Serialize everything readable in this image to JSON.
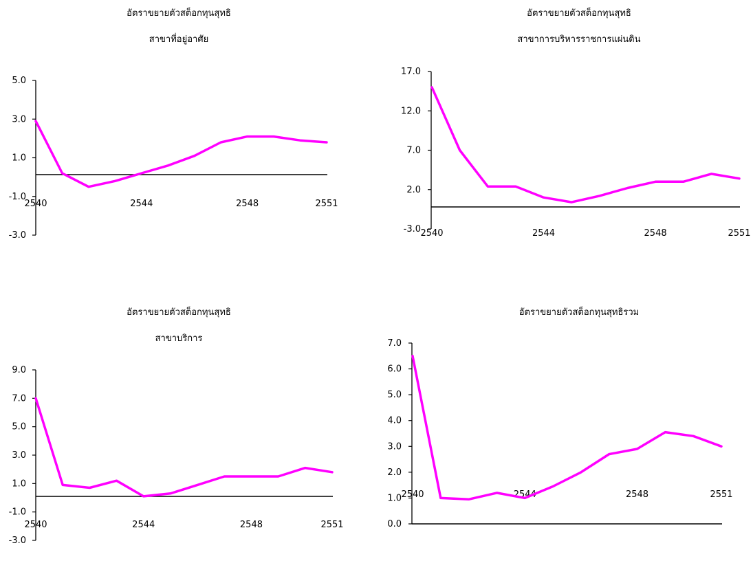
{
  "line_color": "#ff00ff",
  "axis_color": "#000000",
  "chart_data": [
    {
      "type": "line",
      "title": "อัตราขยายตัวสต็อกทุนสุทธิ",
      "subtitle": "สาขาที่อยู่อาศัย",
      "x": [
        2540,
        2541,
        2542,
        2543,
        2544,
        2545,
        2546,
        2547,
        2548,
        2549,
        2550,
        2551
      ],
      "x_tick_labels": [
        "2540",
        "2544",
        "2548",
        "2551"
      ],
      "values": [
        2.9,
        0.2,
        -0.5,
        -0.2,
        0.2,
        0.6,
        1.1,
        1.8,
        2.1,
        2.1,
        1.9,
        1.8
      ],
      "y_ticks": [
        "5.0",
        "3.0",
        "1.0",
        "-1.0",
        "-3.0"
      ],
      "ylim": [
        -3,
        5
      ]
    },
    {
      "type": "line",
      "title": "อัตราขยายตัวสต็อกทุนสุทธิ",
      "subtitle": "สาขาการบริหารราชการแผ่นดิน",
      "x": [
        2540,
        2541,
        2542,
        2543,
        2544,
        2545,
        2546,
        2547,
        2548,
        2549,
        2550,
        2551
      ],
      "x_tick_labels": [
        "2540",
        "2544",
        "2548",
        "2551"
      ],
      "values": [
        15.0,
        7.0,
        2.4,
        2.4,
        1.0,
        0.4,
        1.2,
        2.2,
        3.0,
        3.0,
        4.0,
        3.4
      ],
      "y_ticks": [
        "17.0",
        "12.0",
        "7.0",
        "2.0",
        "-3.0"
      ],
      "ylim": [
        -3,
        17
      ]
    },
    {
      "type": "line",
      "title": "อัตราขยายตัวสต็อกทุนสุทธิ",
      "subtitle": "สาขาบริการ",
      "x": [
        2540,
        2541,
        2542,
        2543,
        2544,
        2545,
        2546,
        2547,
        2548,
        2549,
        2550,
        2551
      ],
      "x_tick_labels": [
        "2540",
        "2544",
        "2548",
        "2551"
      ],
      "values": [
        7.0,
        0.9,
        0.7,
        1.2,
        0.1,
        0.3,
        0.9,
        1.5,
        1.5,
        1.5,
        2.1,
        1.8
      ],
      "y_ticks": [
        "9.0",
        "7.0",
        "5.0",
        "3.0",
        "1.0",
        "-1.0",
        "-3.0"
      ],
      "ylim": [
        -3,
        9
      ]
    },
    {
      "type": "line",
      "title": "อัตราขยายตัวสต็อกทุนสุทธิรวม",
      "subtitle": "",
      "x": [
        2540,
        2541,
        2542,
        2543,
        2544,
        2545,
        2546,
        2547,
        2548,
        2549,
        2550,
        2551
      ],
      "x_tick_labels": [
        "2540",
        "2544",
        "2548",
        "2551"
      ],
      "values": [
        6.5,
        1.0,
        0.95,
        1.2,
        1.0,
        1.45,
        2.0,
        2.7,
        2.9,
        3.55,
        3.4,
        3.0
      ],
      "y_ticks": [
        "7.0",
        "6.0",
        "5.0",
        "4.0",
        "3.0",
        "2.0",
        "1.0",
        "0.0"
      ],
      "ylim": [
        0,
        7
      ]
    }
  ]
}
